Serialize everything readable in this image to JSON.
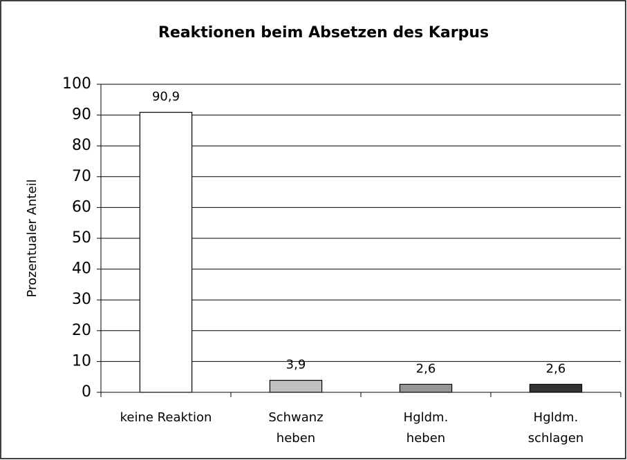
{
  "chart_data": {
    "type": "bar",
    "title": "Reaktionen beim Absetzen des Karpus",
    "y_axis_label": "Prozentualer Anteil",
    "categories": [
      "keine Reaktion",
      "Schwanz\nheben",
      "Hgldm.\nheben",
      "Hgldm.\nschlagen"
    ],
    "values": [
      90.9,
      3.9,
      2.6,
      2.6
    ],
    "value_labels": [
      "90,9",
      "3,9",
      "2,6",
      "2,6"
    ],
    "colors": [
      "#ffffff",
      "#c0c0c0",
      "#969696",
      "#333333"
    ],
    "ylim": [
      0,
      100
    ],
    "yticks": [
      0,
      10,
      20,
      30,
      40,
      50,
      60,
      70,
      80,
      90,
      100
    ],
    "grid": true
  }
}
